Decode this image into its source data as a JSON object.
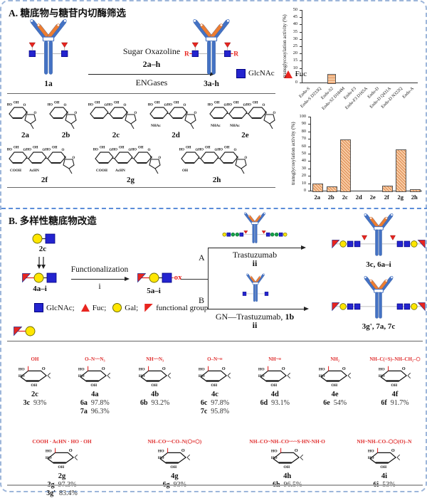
{
  "colors": {
    "blue": "#4472C4",
    "blue_dark": "#2F5597",
    "orange": "#ED7D31",
    "glcnac": "#2424CF",
    "glcnac_border": "#000080",
    "fuc": "#E8251F",
    "gal": "#FFE600",
    "gal_border": "#6b6b00",
    "man": "#15A049",
    "link": "#aaaaaa",
    "red": "#E8251F"
  },
  "panel_a": {
    "title": "A. 糖底物与糖苷内切酶筛选",
    "reactant_label": "1a",
    "product_label": "3a-h",
    "arrow_line1": "Sugar Oxazoline",
    "arrow_line2": "2a–h",
    "arrow_line3": "ENGases",
    "r_label": "R",
    "legend": [
      {
        "icon": "glcnac-square",
        "label": "GlcNAc"
      },
      {
        "icon": "fuc-triangle",
        "label": "Fuc"
      }
    ],
    "sugars_row1": [
      {
        "id": "2a",
        "rings": 1,
        "subs": []
      },
      {
        "id": "2b",
        "rings": 1,
        "subs": []
      },
      {
        "id": "2c",
        "rings": 2,
        "subs": []
      },
      {
        "id": "2d",
        "rings": 2,
        "subs": [
          "NHAc"
        ]
      },
      {
        "id": "2e",
        "rings": 3,
        "subs": [
          "NHAc",
          "NHAc"
        ]
      }
    ],
    "sugars_row2": [
      {
        "id": "2f",
        "rings": 3,
        "subs": [
          "COOH",
          "AcHN"
        ]
      },
      {
        "id": "2g",
        "rings": 3,
        "subs": [
          "COOH",
          "AcHN"
        ]
      },
      {
        "id": "2h",
        "rings": 3,
        "subs": [
          "OH"
        ]
      }
    ],
    "atom_o": "O",
    "atom_n": "N",
    "atom_ho": "HO",
    "atom_oh": "OH"
  },
  "chart_data": [
    {
      "type": "bar",
      "title": "",
      "xlabel": "",
      "ylabel": "transglycosylation activity (%)",
      "ylim": [
        0,
        50
      ],
      "ytick_step": 5,
      "grid": false,
      "legend_position": "none",
      "categories": [
        "Endo-S",
        "Endo-S D233Q",
        "Endo-S2",
        "Endo-S2 D184M",
        "Endo-F3",
        "Endo-F3 D165A",
        "Endo-D",
        "Endo-D Q431A",
        "Endo-D N322Q",
        "Endo-A"
      ],
      "values": [
        0,
        0,
        6,
        0,
        0,
        0,
        0,
        0,
        0,
        0
      ]
    },
    {
      "type": "bar",
      "title": "",
      "xlabel": "",
      "ylabel": "transglycosylation activity (%)",
      "ylim": [
        0,
        100
      ],
      "ytick_step": 10,
      "grid": false,
      "legend_position": "none",
      "categories": [
        "2a",
        "2b",
        "2c",
        "2d",
        "2e",
        "2f",
        "2g",
        "2h"
      ],
      "values": [
        9.5,
        6,
        69,
        0,
        0,
        6.5,
        56,
        2
      ]
    }
  ],
  "panel_b": {
    "title": "B. 多样性糖底物改造",
    "start_label": "2c",
    "intermediate_label": "4a–i",
    "arrow1_top": "Functionalization",
    "arrow1_bottom": "i",
    "functionalized_label": "5a–i",
    "ox_label": "-ox",
    "branch_a": "A",
    "branch_b": "B",
    "path_a_antibody": "Trastuzumab",
    "path_a_step": "ii",
    "path_a_product": "3c, 6a–i",
    "path_b_antibody": "GN—Trastuzumab,",
    "path_b_code": "1b",
    "path_b_step": "ii",
    "path_b_product": "3g', 7a, 7c",
    "legend": [
      {
        "icon": "glcnac-square",
        "label": "GlcNAc;"
      },
      {
        "icon": "fuc-triangle",
        "label": "Fuc;"
      },
      {
        "icon": "gal-circle",
        "label": "Gal;"
      },
      {
        "icon": "functional-flag",
        "label": "functional group"
      }
    ]
  },
  "structures": {
    "row1": [
      {
        "id": "2c",
        "red": "OH",
        "yields": [
          {
            "p": "3c",
            "v": "93%"
          }
        ]
      },
      {
        "id": "4a",
        "red": "O–N~~N₃",
        "yields": [
          {
            "p": "6a",
            "v": "97.8%"
          },
          {
            "p": "7a",
            "v": "96.3%"
          }
        ]
      },
      {
        "id": "4b",
        "red": "NH~~N₃",
        "yields": [
          {
            "p": "6b",
            "v": "93.2%"
          }
        ]
      },
      {
        "id": "4c",
        "red": "O–N~≡",
        "yields": [
          {
            "p": "6c",
            "v": "97.8%"
          },
          {
            "p": "7c",
            "v": "95.8%"
          }
        ]
      },
      {
        "id": "4d",
        "red": "NH~≡",
        "yields": [
          {
            "p": "6d",
            "v": "93.1%"
          }
        ]
      },
      {
        "id": "4e",
        "red": "NH₂",
        "yields": [
          {
            "p": "6e",
            "v": "54%"
          }
        ]
      },
      {
        "id": "4f",
        "red": "NH–C(=S)–NH–CH₂–⬡",
        "yields": [
          {
            "p": "6f",
            "v": "91.7%"
          }
        ]
      }
    ],
    "row2": [
      {
        "id": "2g",
        "red": "COOH · AcHN · HO · OH",
        "yields": [
          {
            "p": "3g",
            "v": "97.3%"
          },
          {
            "p": "3g'",
            "v": "83.4%"
          }
        ]
      },
      {
        "id": "4g",
        "red": "NH–CO~~CO–N(⬡≡⬡)",
        "yields": [
          {
            "p": "6g",
            "v": "93%"
          }
        ]
      },
      {
        "id": "4h",
        "red": "NH–CO~NH–CO~~~S·HN·NH·O",
        "yields": [
          {
            "p": "6h",
            "v": "96.5%"
          }
        ]
      },
      {
        "id": "4i",
        "red": "NH~NH–CO–⬡⬡(O)–N",
        "yields": [
          {
            "p": "6i",
            "v": "53%"
          }
        ]
      }
    ]
  }
}
